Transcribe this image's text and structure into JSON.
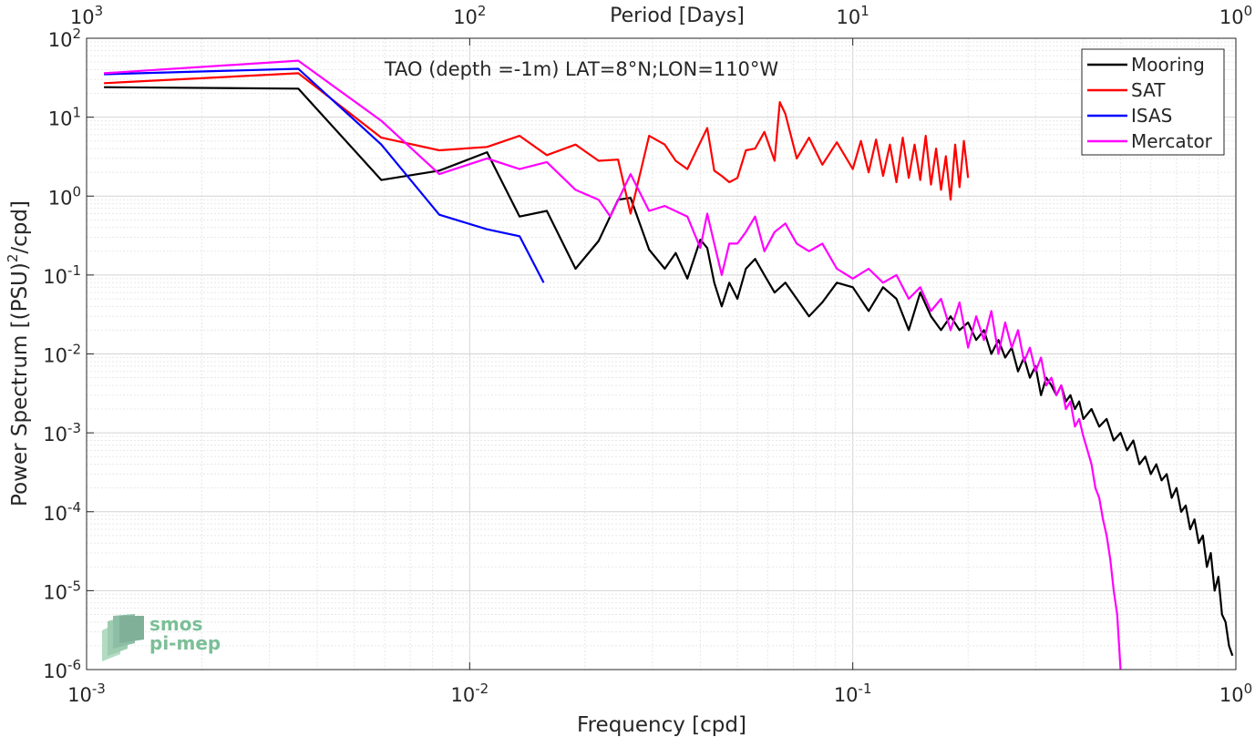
{
  "chart_data": {
    "type": "line",
    "title": "TAO (depth =-1m) LAT=8°N;LON=110°W",
    "xlabel": "Frequency [cpd]",
    "ylabel_main": "Power Spectrum [(PSU)",
    "ylabel_sup": "2",
    "ylabel_tail": "/cpd]",
    "top_axis_label": "Period [Days]",
    "x_scale": "log",
    "y_scale": "log",
    "xlim": [
      0.001,
      1
    ],
    "ylim": [
      1e-06,
      100
    ],
    "grid": true,
    "legend_position": "top-right",
    "x_ticks": [
      {
        "base": "10",
        "exp": "-3"
      },
      {
        "base": "10",
        "exp": "-2"
      },
      {
        "base": "10",
        "exp": "-1"
      },
      {
        "base": "10",
        "exp": "0"
      }
    ],
    "y_ticks": [
      {
        "base": "10",
        "exp": "-6"
      },
      {
        "base": "10",
        "exp": "-5"
      },
      {
        "base": "10",
        "exp": "-4"
      },
      {
        "base": "10",
        "exp": "-3"
      },
      {
        "base": "10",
        "exp": "-2"
      },
      {
        "base": "10",
        "exp": "-1"
      },
      {
        "base": "10",
        "exp": "0"
      },
      {
        "base": "10",
        "exp": "1"
      },
      {
        "base": "10",
        "exp": "2"
      }
    ],
    "top_ticks": [
      {
        "base": "10",
        "exp": "3"
      },
      {
        "base": "10",
        "exp": "2"
      },
      {
        "base": "10",
        "exp": "1"
      },
      {
        "base": "10",
        "exp": "0"
      }
    ],
    "series": [
      {
        "name": "Mooring",
        "color": "#000000",
        "points": [
          [
            0.00111,
            24
          ],
          [
            0.00357,
            23
          ],
          [
            0.00588,
            1.6
          ],
          [
            0.00833,
            2.1
          ],
          [
            0.0111,
            3.6
          ],
          [
            0.0135,
            0.55
          ],
          [
            0.0159,
            0.65
          ],
          [
            0.0189,
            0.12
          ],
          [
            0.0217,
            0.27
          ],
          [
            0.0244,
            0.9
          ],
          [
            0.0263,
            0.95
          ],
          [
            0.0294,
            0.21
          ],
          [
            0.0323,
            0.12
          ],
          [
            0.0345,
            0.19
          ],
          [
            0.037,
            0.09
          ],
          [
            0.04,
            0.28
          ],
          [
            0.0417,
            0.22
          ],
          [
            0.0435,
            0.08
          ],
          [
            0.0455,
            0.04
          ],
          [
            0.0476,
            0.08
          ],
          [
            0.05,
            0.05
          ],
          [
            0.0526,
            0.12
          ],
          [
            0.0556,
            0.16
          ],
          [
            0.0588,
            0.1
          ],
          [
            0.0625,
            0.06
          ],
          [
            0.0667,
            0.08
          ],
          [
            0.0714,
            0.05
          ],
          [
            0.0769,
            0.03
          ],
          [
            0.0833,
            0.045
          ],
          [
            0.0909,
            0.08
          ],
          [
            0.1,
            0.07
          ],
          [
            0.11,
            0.035
          ],
          [
            0.12,
            0.07
          ],
          [
            0.13,
            0.05
          ],
          [
            0.14,
            0.02
          ],
          [
            0.15,
            0.06
          ],
          [
            0.16,
            0.03
          ],
          [
            0.17,
            0.02
          ],
          [
            0.18,
            0.03
          ],
          [
            0.19,
            0.02
          ],
          [
            0.2,
            0.025
          ],
          [
            0.21,
            0.015
          ],
          [
            0.22,
            0.02
          ],
          [
            0.23,
            0.01
          ],
          [
            0.24,
            0.015
          ],
          [
            0.25,
            0.009
          ],
          [
            0.26,
            0.012
          ],
          [
            0.27,
            0.006
          ],
          [
            0.28,
            0.009
          ],
          [
            0.29,
            0.005
          ],
          [
            0.3,
            0.007
          ],
          [
            0.31,
            0.003
          ],
          [
            0.32,
            0.005
          ],
          [
            0.33,
            0.004
          ],
          [
            0.34,
            0.003
          ],
          [
            0.35,
            0.004
          ],
          [
            0.36,
            0.0025
          ],
          [
            0.37,
            0.003
          ],
          [
            0.38,
            0.002
          ],
          [
            0.39,
            0.0025
          ],
          [
            0.4,
            0.0015
          ],
          [
            0.42,
            0.002
          ],
          [
            0.44,
            0.0012
          ],
          [
            0.46,
            0.0015
          ],
          [
            0.48,
            0.0008
          ],
          [
            0.5,
            0.001
          ],
          [
            0.52,
            0.0006
          ],
          [
            0.54,
            0.0008
          ],
          [
            0.56,
            0.0004
          ],
          [
            0.58,
            0.0005
          ],
          [
            0.6,
            0.0003
          ],
          [
            0.62,
            0.0004
          ],
          [
            0.64,
            0.00025
          ],
          [
            0.66,
            0.0003
          ],
          [
            0.68,
            0.00015
          ],
          [
            0.7,
            0.0002
          ],
          [
            0.72,
            0.0001
          ],
          [
            0.74,
            0.00012
          ],
          [
            0.76,
            6e-05
          ],
          [
            0.78,
            8e-05
          ],
          [
            0.8,
            4e-05
          ],
          [
            0.82,
            5e-05
          ],
          [
            0.84,
            2e-05
          ],
          [
            0.86,
            3e-05
          ],
          [
            0.88,
            1e-05
          ],
          [
            0.9,
            1.5e-05
          ],
          [
            0.92,
            5e-06
          ],
          [
            0.94,
            4e-06
          ],
          [
            0.96,
            2e-06
          ],
          [
            0.98,
            1.5e-06
          ]
        ]
      },
      {
        "name": "SAT",
        "color": "#ff0000",
        "points": [
          [
            0.00111,
            27
          ],
          [
            0.00357,
            36
          ],
          [
            0.00588,
            5.5
          ],
          [
            0.00833,
            3.8
          ],
          [
            0.0111,
            4.2
          ],
          [
            0.0135,
            5.8
          ],
          [
            0.0159,
            3.3
          ],
          [
            0.0189,
            4.5
          ],
          [
            0.0217,
            2.8
          ],
          [
            0.0244,
            2.9
          ],
          [
            0.0263,
            0.6
          ],
          [
            0.0294,
            5.8
          ],
          [
            0.0323,
            4.5
          ],
          [
            0.0345,
            2.8
          ],
          [
            0.037,
            2.2
          ],
          [
            0.04,
            4.8
          ],
          [
            0.0417,
            7.3
          ],
          [
            0.0435,
            2.1
          ],
          [
            0.0455,
            1.8
          ],
          [
            0.0476,
            1.5
          ],
          [
            0.05,
            1.7
          ],
          [
            0.0526,
            3.8
          ],
          [
            0.0556,
            4.0
          ],
          [
            0.0588,
            6.5
          ],
          [
            0.0625,
            2.8
          ],
          [
            0.0645,
            15.5
          ],
          [
            0.0667,
            11.0
          ],
          [
            0.0714,
            3.0
          ],
          [
            0.0769,
            5.5
          ],
          [
            0.0833,
            2.5
          ],
          [
            0.0909,
            4.8
          ],
          [
            0.1,
            2.2
          ],
          [
            0.105,
            5.0
          ],
          [
            0.11,
            2.0
          ],
          [
            0.115,
            5.2
          ],
          [
            0.12,
            1.8
          ],
          [
            0.125,
            4.5
          ],
          [
            0.13,
            1.5
          ],
          [
            0.135,
            5.5
          ],
          [
            0.14,
            1.7
          ],
          [
            0.145,
            4.5
          ],
          [
            0.15,
            1.6
          ],
          [
            0.155,
            5.8
          ],
          [
            0.16,
            1.4
          ],
          [
            0.165,
            4.0
          ],
          [
            0.17,
            1.2
          ],
          [
            0.175,
            3.2
          ],
          [
            0.18,
            0.9
          ],
          [
            0.185,
            4.5
          ],
          [
            0.19,
            1.3
          ],
          [
            0.195,
            5.0
          ],
          [
            0.2,
            1.7
          ]
        ]
      },
      {
        "name": "ISAS",
        "color": "#0000ff",
        "points": [
          [
            0.00111,
            35
          ],
          [
            0.00357,
            41
          ],
          [
            0.00588,
            4.5
          ],
          [
            0.00833,
            0.58
          ],
          [
            0.0111,
            0.38
          ],
          [
            0.0135,
            0.31
          ],
          [
            0.0156,
            0.08
          ]
        ]
      },
      {
        "name": "Mercator",
        "color": "#ff00ff",
        "points": [
          [
            0.00111,
            36
          ],
          [
            0.00357,
            52
          ],
          [
            0.00588,
            9
          ],
          [
            0.00833,
            1.9
          ],
          [
            0.0111,
            3.0
          ],
          [
            0.0135,
            2.2
          ],
          [
            0.0159,
            2.7
          ],
          [
            0.0189,
            1.2
          ],
          [
            0.0217,
            0.9
          ],
          [
            0.0233,
            0.55
          ],
          [
            0.0263,
            1.9
          ],
          [
            0.0294,
            0.65
          ],
          [
            0.0323,
            0.75
          ],
          [
            0.037,
            0.55
          ],
          [
            0.04,
            0.22
          ],
          [
            0.0417,
            0.6
          ],
          [
            0.0435,
            0.25
          ],
          [
            0.0455,
            0.1
          ],
          [
            0.0476,
            0.25
          ],
          [
            0.05,
            0.25
          ],
          [
            0.0526,
            0.35
          ],
          [
            0.0556,
            0.55
          ],
          [
            0.0588,
            0.2
          ],
          [
            0.0625,
            0.35
          ],
          [
            0.0667,
            0.45
          ],
          [
            0.0714,
            0.25
          ],
          [
            0.0769,
            0.2
          ],
          [
            0.0833,
            0.25
          ],
          [
            0.0909,
            0.12
          ],
          [
            0.1,
            0.09
          ],
          [
            0.11,
            0.12
          ],
          [
            0.12,
            0.08
          ],
          [
            0.13,
            0.1
          ],
          [
            0.14,
            0.05
          ],
          [
            0.15,
            0.07
          ],
          [
            0.16,
            0.035
          ],
          [
            0.17,
            0.05
          ],
          [
            0.18,
            0.02
          ],
          [
            0.19,
            0.045
          ],
          [
            0.2,
            0.012
          ],
          [
            0.21,
            0.03
          ],
          [
            0.22,
            0.015
          ],
          [
            0.23,
            0.035
          ],
          [
            0.24,
            0.01
          ],
          [
            0.25,
            0.025
          ],
          [
            0.26,
            0.012
          ],
          [
            0.27,
            0.02
          ],
          [
            0.28,
            0.008
          ],
          [
            0.29,
            0.012
          ],
          [
            0.3,
            0.006
          ],
          [
            0.31,
            0.009
          ],
          [
            0.32,
            0.004
          ],
          [
            0.33,
            0.005
          ],
          [
            0.34,
            0.003
          ],
          [
            0.35,
            0.004
          ],
          [
            0.36,
            0.002
          ],
          [
            0.37,
            0.0025
          ],
          [
            0.38,
            0.0012
          ],
          [
            0.39,
            0.0015
          ],
          [
            0.4,
            0.0009
          ],
          [
            0.41,
            0.0006
          ],
          [
            0.42,
            0.0004
          ],
          [
            0.43,
            0.0002
          ],
          [
            0.44,
            0.00015
          ],
          [
            0.45,
            8e-05
          ],
          [
            0.46,
            5e-05
          ],
          [
            0.47,
            2.5e-05
          ],
          [
            0.48,
            1e-05
          ],
          [
            0.49,
            5e-06
          ],
          [
            0.5,
            1e-06
          ]
        ]
      }
    ]
  },
  "watermark": {
    "line1": "smos",
    "line2": "pi-mep"
  }
}
